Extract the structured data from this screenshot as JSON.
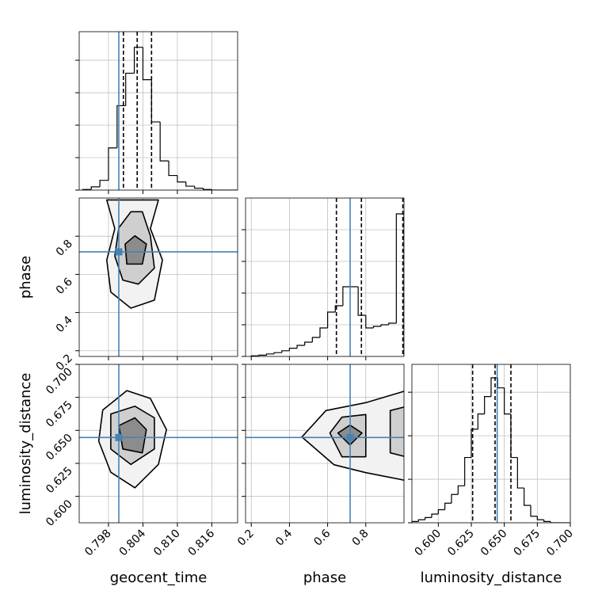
{
  "chart_data": {
    "type": "corner",
    "truth_color": "#4682b4",
    "grid": true,
    "parameters": [
      {
        "name": "geocent_time",
        "lim": [
          0.7929,
          0.8205
        ],
        "ticks": [
          0.798,
          0.804,
          {
            "value": 0.81,
            "label": "0.810"
          },
          0.816
        ],
        "truth": 0.7998,
        "quantiles": [
          0.8006,
          0.803,
          0.8055
        ],
        "hist": {
          "bins": [
            0.7935,
            0.795,
            0.7965,
            0.798,
            0.7995,
            0.801,
            0.8025,
            0.804,
            0.8055,
            0.807,
            0.8085,
            0.81,
            0.8115,
            0.813,
            0.8145,
            0.816,
            0.8175,
            0.819,
            0.8205
          ],
          "counts": [
            0.02,
            0.1,
            0.3,
            1.3,
            2.6,
            3.6,
            4.4,
            3.4,
            2.1,
            0.9,
            0.45,
            0.25,
            0.12,
            0.06,
            0.02,
            0,
            0,
            0
          ],
          "ylim": [
            0,
            4.88
          ],
          "yticks": [
            0,
            1,
            2,
            3,
            4
          ]
        }
      },
      {
        "name": "phase",
        "lim": [
          0.17,
          1.0
        ],
        "ticks": [
          0.2,
          0.4,
          0.6,
          0.8
        ],
        "truth": 0.718,
        "quantiles": [
          0.646,
          0.777,
          0.994
        ],
        "hist": {
          "bins": [
            0.2,
            0.24,
            0.28,
            0.32,
            0.36,
            0.4,
            0.44,
            0.48,
            0.52,
            0.56,
            0.6,
            0.64,
            0.68,
            0.72,
            0.76,
            0.8,
            0.84,
            0.88,
            0.92,
            0.96,
            1.0
          ],
          "counts": [
            0.02,
            0.04,
            0.08,
            0.12,
            0.18,
            0.26,
            0.35,
            0.45,
            0.6,
            0.9,
            1.4,
            1.6,
            2.2,
            2.2,
            1.3,
            0.9,
            0.95,
            1.0,
            1.05,
            4.5
          ],
          "ylim": [
            0,
            5
          ],
          "yticks": [
            0,
            1,
            2,
            3,
            4
          ]
        }
      },
      {
        "name": "luminosity_distance",
        "lim": [
          0.58,
          0.7
        ],
        "ticks": [
          {
            "value": 0.6,
            "label": "0.600"
          },
          {
            "value": 0.625,
            "label": "0.625"
          },
          {
            "value": 0.65,
            "label": "0.650"
          },
          {
            "value": 0.675,
            "label": "0.675"
          },
          {
            "value": 0.7,
            "label": "0.700"
          }
        ],
        "truth": 0.6446,
        "quantiles": [
          0.626,
          0.643,
          0.655
        ],
        "hist": {
          "bins": [
            0.58,
            0.585,
            0.59,
            0.595,
            0.6,
            0.605,
            0.61,
            0.615,
            0.62,
            0.625,
            0.63,
            0.635,
            0.64,
            0.645,
            0.65,
            0.655,
            0.66,
            0.665,
            0.67,
            0.675,
            0.68,
            0.685,
            0.69,
            0.695,
            0.7
          ],
          "counts": [
            0.03,
            0.07,
            0.12,
            0.2,
            0.3,
            0.45,
            0.65,
            0.85,
            1.5,
            2.15,
            2.5,
            2.9,
            3.33,
            3.1,
            2.5,
            1.5,
            0.8,
            0.4,
            0.15,
            0.07,
            0.03,
            0,
            0,
            0
          ],
          "ylim": [
            0,
            3.64
          ],
          "yticks": [
            0,
            1,
            2,
            3
          ]
        }
      }
    ],
    "pairs": [
      {
        "contours": [
          {
            "x": [
              0.7977,
              0.7991,
              0.7977,
              0.7984,
              0.8019,
              0.806,
              0.8074,
              0.8053,
              0.8067
            ],
            "y": [
              0.99,
              0.84,
              0.675,
              0.507,
              0.423,
              0.465,
              0.675,
              0.84,
              0.99
            ]
          },
          {
            "x": [
              0.7998,
              0.7991,
              0.8005,
              0.8032,
              0.806,
              0.8053,
              0.8039,
              0.8019
            ],
            "y": [
              0.844,
              0.696,
              0.57,
              0.549,
              0.633,
              0.802,
              0.928,
              0.928
            ]
          },
          {
            "x": [
              0.8009,
              0.8012,
              0.8039,
              0.8046,
              0.8026
            ],
            "y": [
              0.759,
              0.654,
              0.654,
              0.759,
              0.802
            ]
          }
        ]
      },
      {
        "contours": [
          {
            "x": [
              0.797,
              0.7963,
              0.7984,
              0.8026,
              0.8067,
              0.8081,
              0.8053,
              0.8012
            ],
            "y": [
              0.6654,
              0.6418,
              0.6183,
              0.6065,
              0.6242,
              0.6506,
              0.6742,
              0.6801
            ]
          },
          {
            "x": [
              0.7984,
              0.7984,
              0.8019,
              0.806,
              0.806,
              0.8026
            ],
            "y": [
              0.6624,
              0.6359,
              0.6242,
              0.6359,
              0.6595,
              0.6683
            ]
          },
          {
            "x": [
              0.7998,
              0.8005,
              0.8039,
              0.8046,
              0.8026
            ],
            "y": [
              0.6536,
              0.6359,
              0.633,
              0.6506,
              0.6595
            ]
          }
        ]
      },
      {
        "contours": [
          {
            "x": [
              0.465,
              0.591,
              0.8,
              1.01,
              1.01,
              0.8,
              0.633
            ],
            "y": [
              0.645,
              0.665,
              0.671,
              0.68,
              0.612,
              0.618,
              0.624
            ]
          },
          {
            "x": [
              0.612,
              0.675,
              0.8,
              0.8,
              0.675
            ],
            "y": [
              0.648,
              0.66,
              0.662,
              0.63,
              0.63
            ]
          },
          {
            "x": [
              0.654,
              0.717,
              0.78,
              0.717
            ],
            "y": [
              0.648,
              0.654,
              0.648,
              0.639
            ]
          },
          {
            "x": [
              0.928,
              1.01,
              1.01,
              0.928
            ],
            "y": [
              0.665,
              0.668,
              0.63,
              0.633
            ]
          }
        ]
      }
    ]
  }
}
